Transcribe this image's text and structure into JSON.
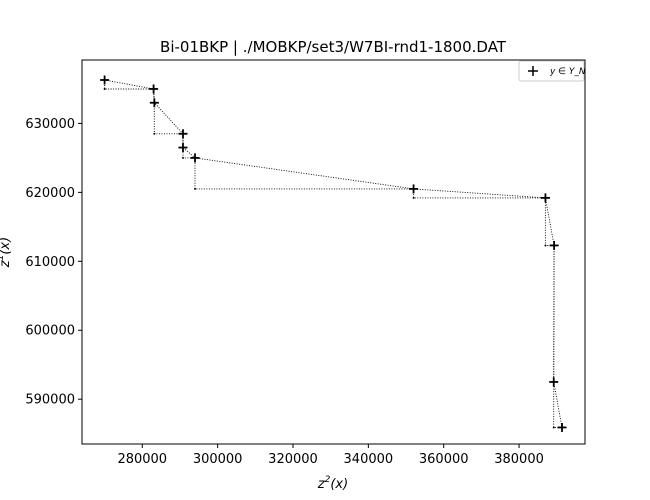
{
  "chart_data": {
    "type": "scatter",
    "title": "Bi-01BKP | ./MOBKP/set3/W7BI-rnd1-1800.DAT",
    "xlabel_base": "z",
    "xlabel_sup": "2",
    "xlabel_arg": "(x)",
    "ylabel_base": "z",
    "ylabel_sup": "1",
    "ylabel_arg": "(x)",
    "xlim": [
      264000,
      397500
    ],
    "ylim": [
      583500,
      639200
    ],
    "xticks": [
      280000,
      300000,
      320000,
      340000,
      360000,
      380000
    ],
    "xtick_labels": [
      "280000",
      "300000",
      "320000",
      "340000",
      "360000",
      "380000"
    ],
    "yticks": [
      590000,
      600000,
      610000,
      620000,
      630000
    ],
    "ytick_labels": [
      "590000",
      "600000",
      "610000",
      "620000",
      "630000"
    ],
    "grid": false,
    "legend_position": "top-right",
    "legend_label": "y ∈ Y_N",
    "series": [
      {
        "name": "y ∈ Y_N",
        "marker": "plus",
        "points": [
          [
            270000,
            636300
          ],
          [
            283000,
            635000
          ],
          [
            283200,
            633000
          ],
          [
            290800,
            628500
          ],
          [
            290800,
            626500
          ],
          [
            294000,
            625000
          ],
          [
            352000,
            620500
          ],
          [
            387000,
            619200
          ],
          [
            389300,
            612300
          ],
          [
            389200,
            592500
          ],
          [
            391400,
            585900
          ]
        ]
      }
    ],
    "staircase_corners": [
      [
        270000,
        635000
      ],
      [
        283200,
        628500
      ],
      [
        290800,
        625000
      ],
      [
        294000,
        620500
      ],
      [
        352000,
        619200
      ],
      [
        387000,
        612300
      ],
      [
        389200,
        585900
      ]
    ]
  }
}
